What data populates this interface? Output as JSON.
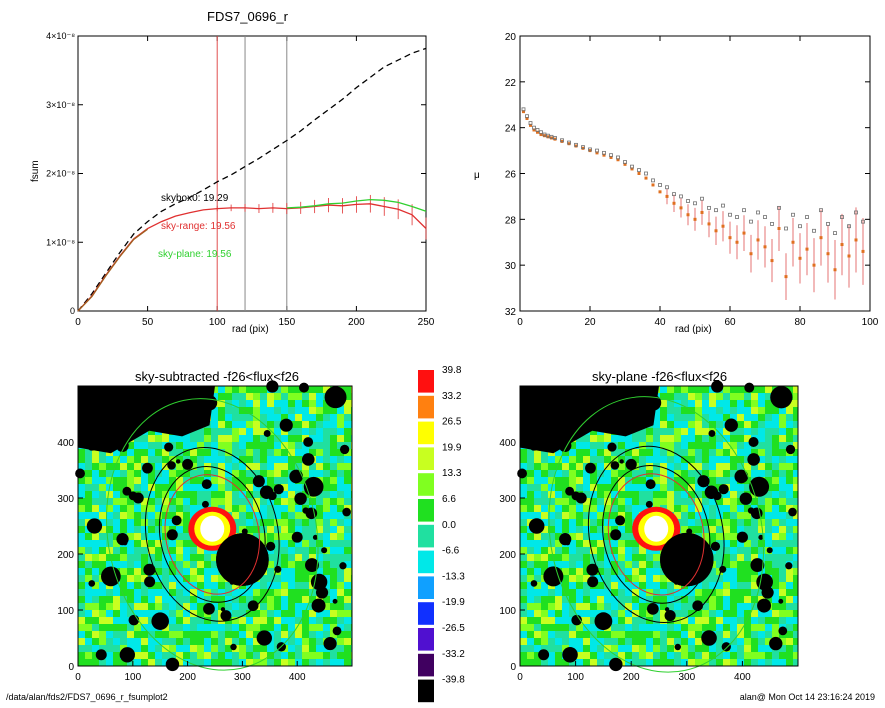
{
  "chart_data": [
    {
      "type": "line",
      "title": "FDS7_0696_r",
      "xlabel": "rad (pix)",
      "ylabel": "fsum",
      "xlim": [
        0,
        250
      ],
      "ylim": [
        0,
        4e-08
      ],
      "xticks": [
        "0",
        "50",
        "100",
        "150",
        "200",
        "250"
      ],
      "yticks": [
        "0",
        "1×10⁻⁸",
        "2×10⁻⁸",
        "3×10⁻⁸",
        "4×10⁻⁸"
      ],
      "vlines": [
        {
          "x": 100,
          "color": "#e05050"
        },
        {
          "x": 120,
          "color": "#888888"
        },
        {
          "x": 150,
          "color": "#888888"
        }
      ],
      "series": [
        {
          "style": "dashed",
          "color": "#000000",
          "x": [
            0,
            10,
            20,
            30,
            40,
            50,
            60,
            70,
            80,
            90,
            100,
            110,
            120,
            130,
            140,
            150,
            160,
            170,
            180,
            190,
            200,
            210,
            220,
            230,
            240,
            250
          ],
          "y": [
            0,
            2.5e-09,
            5.5e-09,
            8.5e-09,
            1.12e-08,
            1.3e-08,
            1.45e-08,
            1.56e-08,
            1.65e-08,
            1.76e-08,
            1.88e-08,
            1.98e-08,
            2.1e-08,
            2.22e-08,
            2.35e-08,
            2.48e-08,
            2.62e-08,
            2.78e-08,
            2.93e-08,
            3.08e-08,
            3.25e-08,
            3.4e-08,
            3.55e-08,
            3.65e-08,
            3.75e-08,
            3.82e-08
          ]
        },
        {
          "color": "#e03030",
          "x": [
            0,
            10,
            20,
            30,
            40,
            50,
            60,
            70,
            80,
            90,
            100,
            110,
            120,
            130,
            140,
            150,
            160,
            170,
            180,
            190,
            200,
            210,
            220,
            230,
            240,
            250
          ],
          "y": [
            0,
            2.2e-09,
            5.2e-09,
            8e-09,
            1.05e-08,
            1.2e-08,
            1.3e-08,
            1.38e-08,
            1.43e-08,
            1.47e-08,
            1.49e-08,
            1.5e-08,
            1.5e-08,
            1.49e-08,
            1.5e-08,
            1.49e-08,
            1.5e-08,
            1.52e-08,
            1.54e-08,
            1.53e-08,
            1.55e-08,
            1.56e-08,
            1.52e-08,
            1.48e-08,
            1.4e-08,
            1.2e-08
          ]
        },
        {
          "color": "#30d030",
          "x": [
            150,
            160,
            170,
            180,
            190,
            200,
            210,
            220,
            230,
            240,
            250
          ],
          "y": [
            1.5e-08,
            1.51e-08,
            1.53e-08,
            1.56e-08,
            1.57e-08,
            1.6e-08,
            1.62e-08,
            1.61e-08,
            1.58e-08,
            1.52e-08,
            1.45e-08
          ]
        },
        {
          "color": "#a06020",
          "x": [
            0,
            10,
            20,
            30,
            40,
            50
          ],
          "y": [
            0,
            2.1e-09,
            5.1e-09,
            7.9e-09,
            1.04e-08,
            1.19e-08
          ]
        }
      ],
      "annotations": [
        {
          "text": "skybox0: 19.29",
          "color": "#000000"
        },
        {
          "text": "sky-range: 19.56",
          "color": "#e03030"
        },
        {
          "text": "sky-plane: 19.56",
          "color": "#30d030"
        }
      ]
    },
    {
      "type": "scatter",
      "title": "",
      "xlabel": "rad (pix)",
      "ylabel": "μ",
      "xlim": [
        0,
        100
      ],
      "ylim": [
        32,
        20
      ],
      "xticks": [
        "0",
        "20",
        "40",
        "60",
        "80",
        "100"
      ],
      "yticks": [
        "20",
        "22",
        "24",
        "26",
        "28",
        "30",
        "32"
      ],
      "series": [
        {
          "color": "#e07020",
          "x": [
            1,
            2,
            3,
            4,
            5,
            6,
            7,
            8,
            9,
            10,
            12,
            14,
            16,
            18,
            20,
            22,
            24,
            26,
            28,
            30,
            32,
            34,
            36,
            38,
            40,
            42,
            44,
            46,
            48,
            50,
            52,
            54,
            56,
            58,
            60,
            62,
            64,
            66,
            68,
            70,
            72,
            74,
            76,
            78,
            80,
            82,
            84,
            86,
            88,
            90,
            92,
            94,
            96,
            98
          ],
          "y": [
            23.3,
            23.6,
            23.9,
            24.1,
            24.2,
            24.3,
            24.35,
            24.4,
            24.45,
            24.5,
            24.6,
            24.7,
            24.8,
            24.9,
            25.0,
            25.1,
            25.2,
            25.3,
            25.4,
            25.6,
            25.8,
            26.0,
            26.2,
            26.5,
            26.8,
            27.0,
            27.3,
            27.5,
            27.8,
            28.0,
            27.7,
            28.2,
            28.5,
            28.3,
            28.8,
            29.0,
            28.6,
            29.5,
            28.9,
            29.2,
            29.8,
            28.4,
            30.5,
            29.0,
            29.7,
            29.3,
            30.0,
            28.8,
            29.5,
            30.2,
            29.1,
            29.6,
            28.9,
            29.4
          ]
        },
        {
          "color": "#707070",
          "marker": "open-square",
          "x": [
            1,
            2,
            3,
            4,
            5,
            6,
            7,
            8,
            9,
            10,
            12,
            14,
            16,
            18,
            20,
            22,
            24,
            26,
            28,
            30,
            32,
            34,
            36,
            38,
            40,
            42,
            44,
            46,
            48,
            50,
            52,
            54,
            56,
            58,
            60,
            62,
            64,
            66,
            68,
            70,
            72,
            74,
            76,
            78,
            80,
            82,
            84,
            86,
            88,
            90,
            92,
            94,
            96,
            98
          ],
          "y": [
            23.2,
            23.5,
            23.8,
            24.0,
            24.1,
            24.2,
            24.3,
            24.35,
            24.4,
            24.45,
            24.55,
            24.65,
            24.75,
            24.85,
            24.95,
            25.0,
            25.1,
            25.2,
            25.3,
            25.5,
            25.7,
            25.85,
            26.0,
            26.3,
            26.5,
            26.6,
            26.9,
            27.0,
            27.2,
            27.3,
            27.1,
            27.5,
            27.6,
            27.4,
            27.8,
            27.9,
            27.6,
            28.1,
            27.7,
            27.9,
            28.2,
            27.5,
            28.4,
            27.8,
            28.3,
            27.9,
            28.5,
            27.6,
            28.2,
            28.6,
            27.9,
            28.3,
            27.7,
            28.1
          ]
        }
      ]
    },
    {
      "type": "heatmap",
      "title": "sky-subtracted -f26<flux<f26",
      "xlim": [
        0,
        500
      ],
      "ylim": [
        0,
        500
      ],
      "xticks": [
        "0",
        "100",
        "200",
        "300",
        "400"
      ],
      "yticks": [
        "0",
        "100",
        "200",
        "300",
        "400"
      ]
    },
    {
      "type": "heatmap",
      "title": "sky-plane -f26<flux<f26",
      "xlim": [
        0,
        500
      ],
      "ylim": [
        0,
        500
      ],
      "xticks": [
        "0",
        "100",
        "200",
        "300",
        "400"
      ],
      "yticks": [
        "0",
        "100",
        "200",
        "300",
        "400"
      ]
    }
  ],
  "colorbar": {
    "labels": [
      "39.8",
      "33.2",
      "26.5",
      "19.9",
      "13.3",
      "6.6",
      "0.0",
      "-6.6",
      "-13.3",
      "-19.9",
      "-26.5",
      "-33.2",
      "-39.8"
    ],
    "colors": [
      "#ff1010",
      "#ff8010",
      "#ffff00",
      "#c8ff20",
      "#80ff20",
      "#20e020",
      "#20e0a0",
      "#00e8e8",
      "#10a0ff",
      "#1030ff",
      "#5010d0",
      "#400060",
      "#000000"
    ]
  },
  "footer": {
    "left": "/data/alan/fds2/FDS7_0696_r_fsumplot2",
    "right": "alan@  Mon Oct 14 23:16:24 2019"
  }
}
